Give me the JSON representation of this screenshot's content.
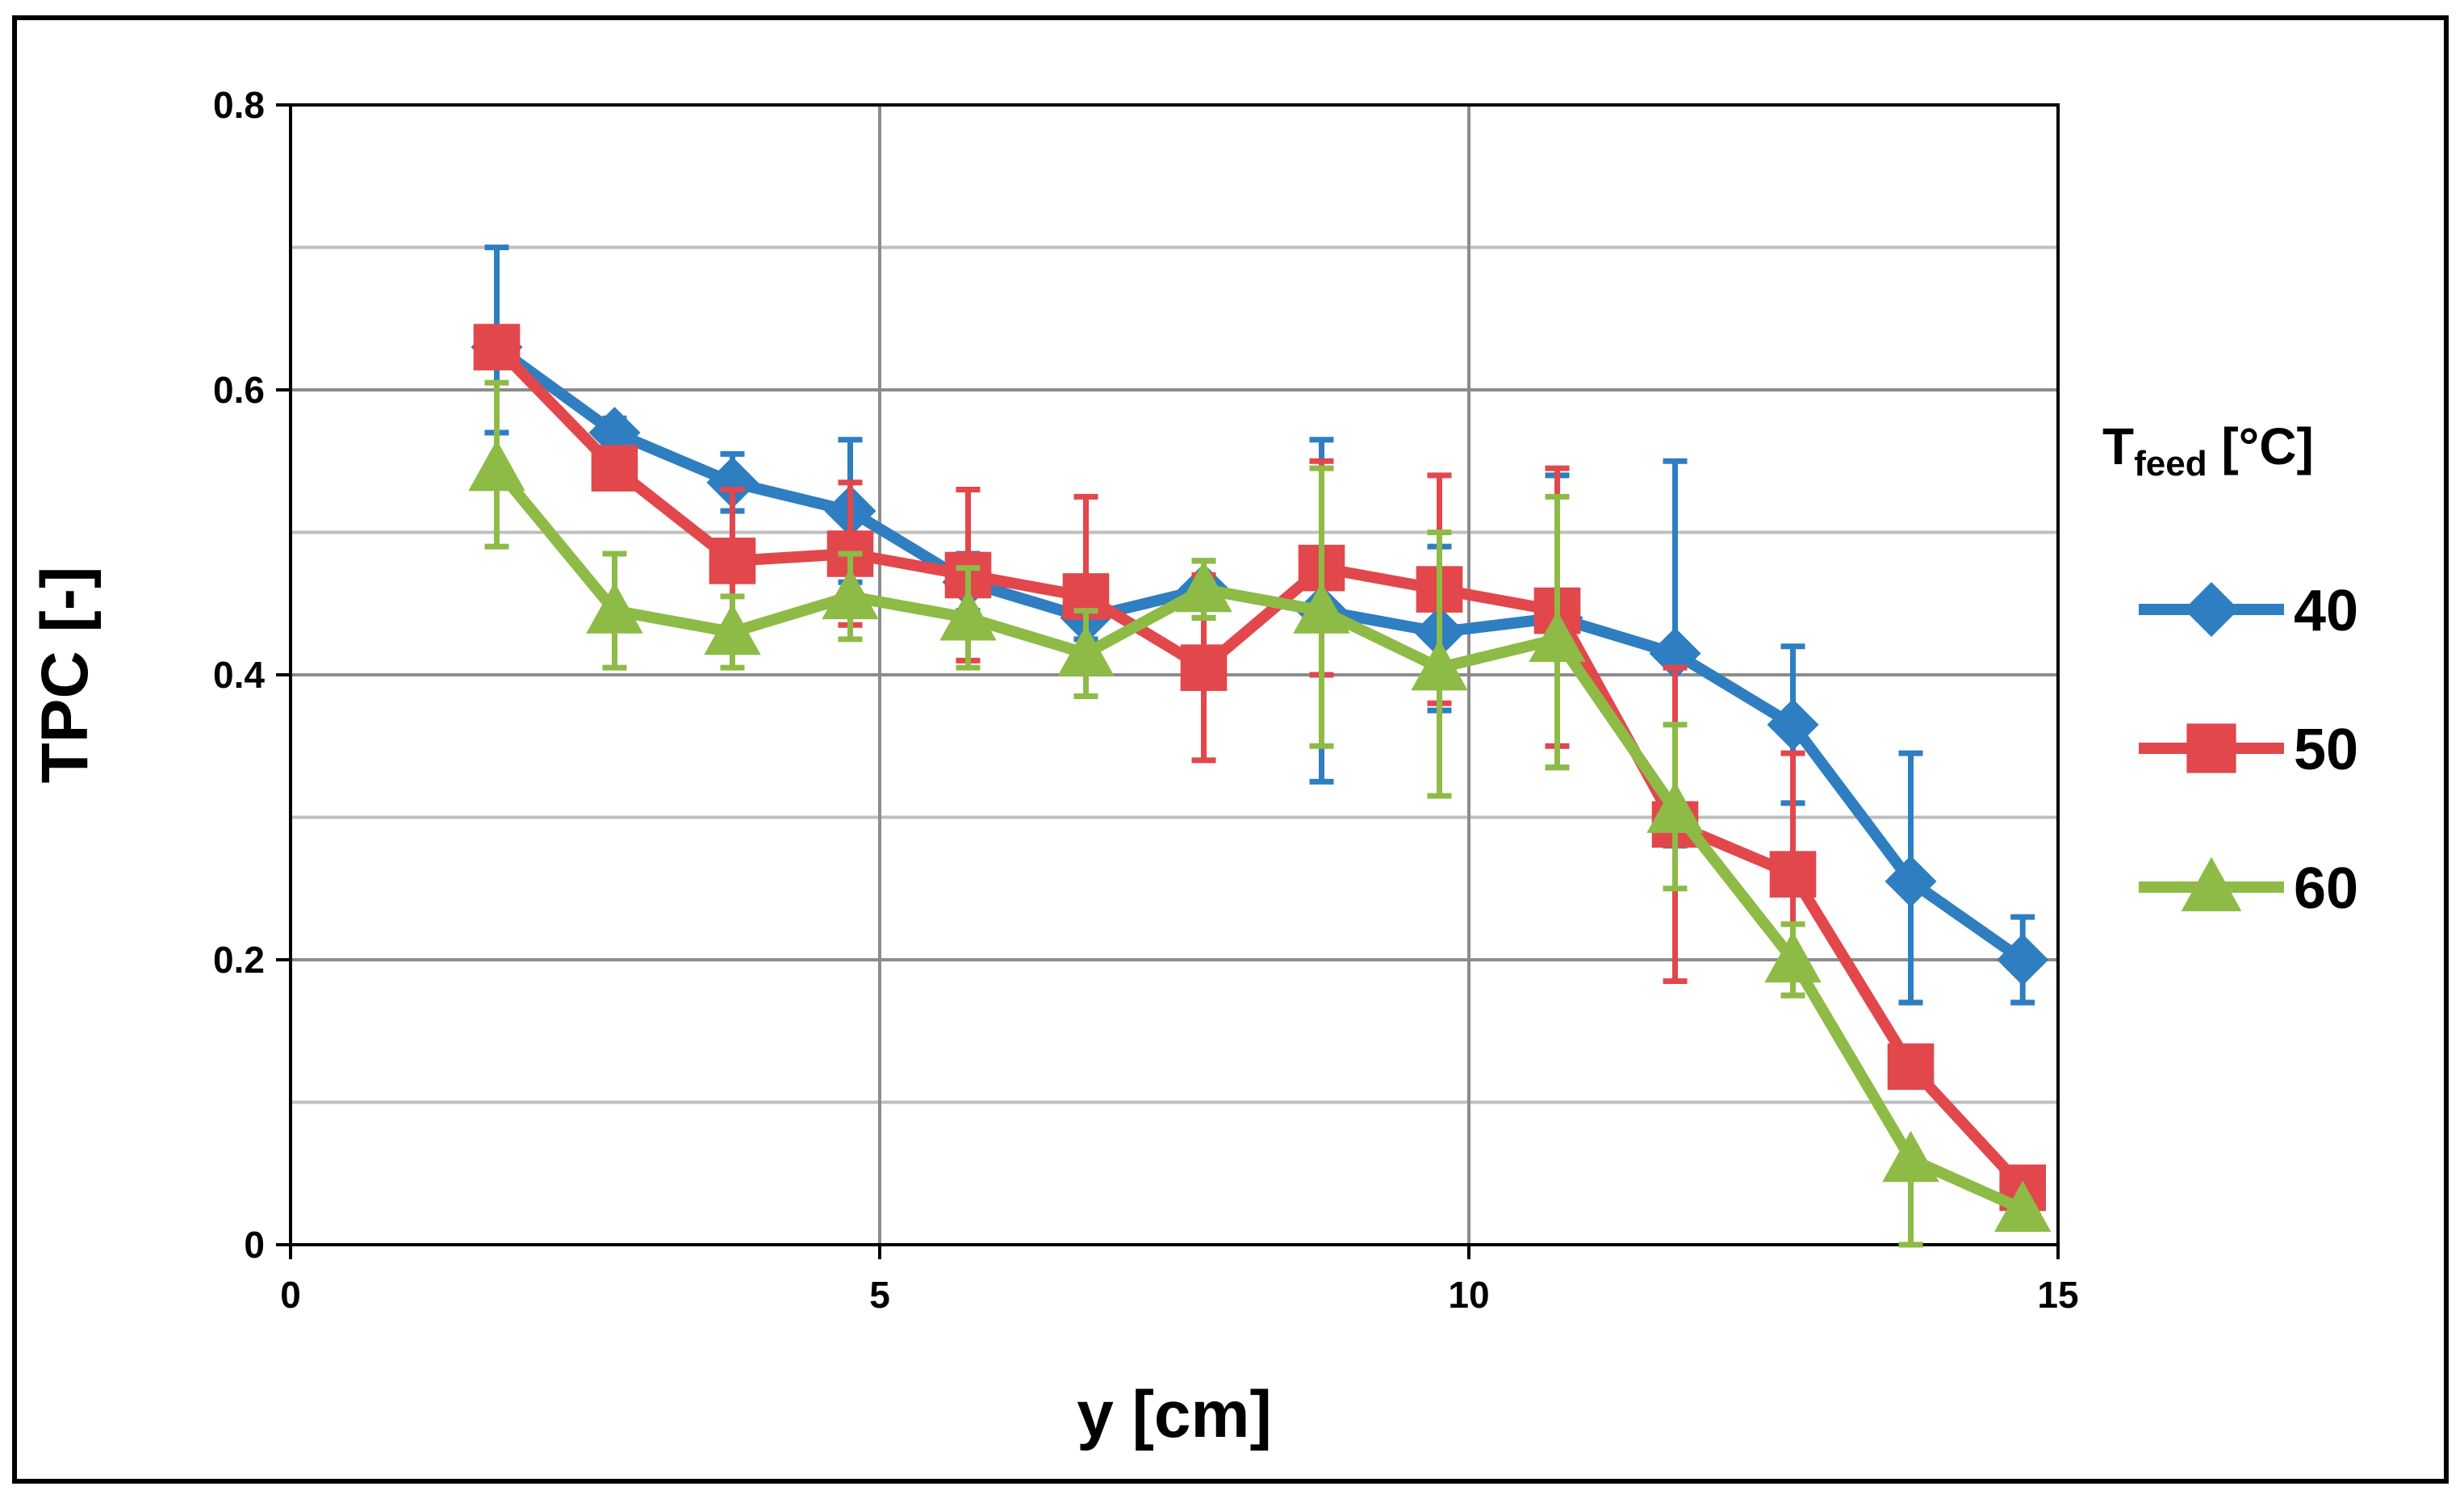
{
  "chart_data": {
    "type": "line",
    "title": "",
    "xlabel": "y [cm]",
    "ylabel": "TPC [-]",
    "xlim": [
      0,
      15
    ],
    "ylim": [
      0,
      0.8
    ],
    "x_ticks": [
      0,
      5,
      10,
      15
    ],
    "y_ticks": [
      0,
      0.2,
      0.4,
      0.6,
      0.8
    ],
    "x_tick_labels": [
      "0",
      "5",
      "10",
      "15"
    ],
    "y_tick_labels": [
      "0",
      "0.2",
      "0.4",
      "0.6",
      "0.8"
    ],
    "x_grid_major": [
      5,
      10
    ],
    "y_grid_major": [
      0.2,
      0.4,
      0.6
    ],
    "y_grid_minor": [
      0.1,
      0.3,
      0.5,
      0.7
    ],
    "legend": {
      "title_main": "T",
      "title_sub": "feed",
      "title_unit": " [°C]",
      "placement": "right"
    },
    "series": [
      {
        "name": "40",
        "color": "#2E7EC1",
        "marker": "diamond",
        "x": [
          1.75,
          2.75,
          3.75,
          4.75,
          5.75,
          6.75,
          7.75,
          8.75,
          9.75,
          10.75,
          11.75,
          12.75,
          13.75,
          14.7
        ],
        "y": [
          0.63,
          0.57,
          0.535,
          0.515,
          0.465,
          0.44,
          0.46,
          0.445,
          0.43,
          0.44,
          0.415,
          0.365,
          0.255,
          0.2
        ],
        "err_upper": [
          0.7,
          0.58,
          0.555,
          0.565,
          0.485,
          0.455,
          0.48,
          0.565,
          0.49,
          0.54,
          0.55,
          0.42,
          0.345,
          0.23
        ],
        "err_lower": [
          0.57,
          0.56,
          0.515,
          0.465,
          0.445,
          0.425,
          0.44,
          0.325,
          0.375,
          0.335,
          0.28,
          0.31,
          0.17,
          0.17
        ]
      },
      {
        "name": "50",
        "color": "#E2474B",
        "marker": "square",
        "x": [
          1.75,
          2.75,
          3.75,
          4.75,
          5.75,
          6.75,
          7.75,
          8.75,
          9.75,
          10.75,
          11.75,
          12.75,
          13.75,
          14.7
        ],
        "y": [
          0.63,
          0.545,
          0.48,
          0.485,
          0.47,
          0.455,
          0.405,
          0.475,
          0.46,
          0.445,
          0.295,
          0.26,
          0.125,
          0.04
        ],
        "err_upper": [
          0.63,
          0.555,
          0.53,
          0.535,
          0.53,
          0.525,
          0.47,
          0.55,
          0.54,
          0.545,
          0.405,
          0.345,
          0.125,
          0.04
        ],
        "err_lower": [
          0.63,
          0.535,
          0.43,
          0.435,
          0.41,
          0.385,
          0.34,
          0.4,
          0.38,
          0.35,
          0.185,
          0.175,
          0.125,
          0.04
        ]
      },
      {
        "name": "60",
        "color": "#8DBB46",
        "marker": "triangle",
        "x": [
          1.75,
          2.75,
          3.75,
          4.75,
          5.75,
          6.75,
          7.75,
          8.75,
          9.75,
          10.75,
          11.75,
          12.75,
          13.75,
          14.7
        ],
        "y": [
          0.545,
          0.445,
          0.43,
          0.455,
          0.44,
          0.415,
          0.46,
          0.445,
          0.405,
          0.425,
          0.305,
          0.2,
          0.06,
          0.025
        ],
        "err_upper": [
          0.605,
          0.485,
          0.455,
          0.485,
          0.475,
          0.445,
          0.48,
          0.545,
          0.5,
          0.525,
          0.365,
          0.225,
          0.06,
          0.025
        ],
        "err_lower": [
          0.49,
          0.405,
          0.405,
          0.425,
          0.405,
          0.385,
          0.44,
          0.35,
          0.315,
          0.335,
          0.25,
          0.175,
          0.0,
          0.025
        ]
      }
    ]
  }
}
